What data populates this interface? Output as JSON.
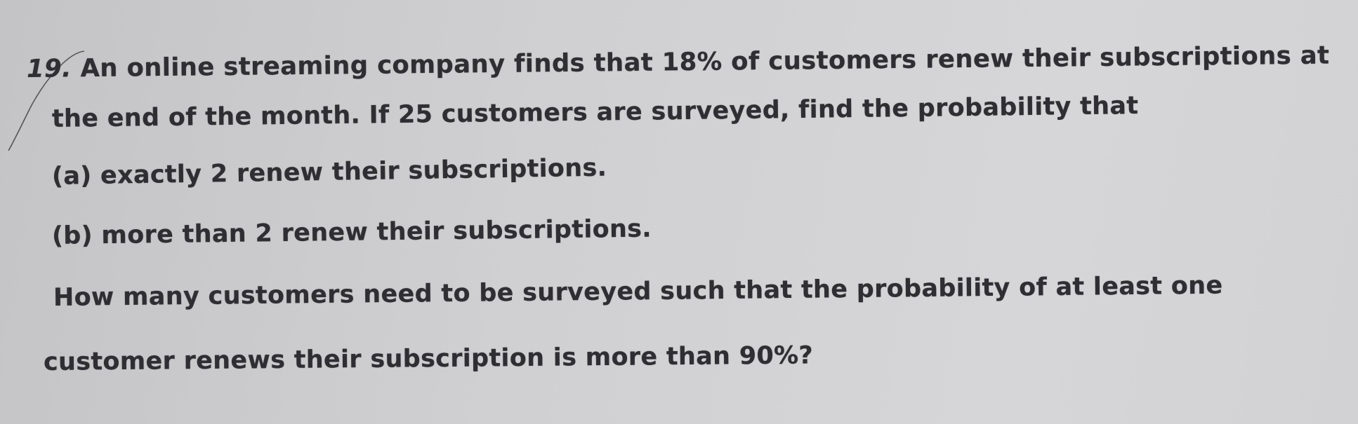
{
  "problem": {
    "number": "19.",
    "lines": [
      "An online streaming company finds that 18% of customers renew their subscriptions at",
      "the end of the month. If 25 customers are surveyed, find the probability that",
      "(a) exactly 2 renew their subscriptions.",
      "(b) more than 2 renew their subscriptions.",
      "How many customers need to be surveyed such that the probability of at least one",
      "customer renews their subscription is more than 90%?"
    ]
  }
}
